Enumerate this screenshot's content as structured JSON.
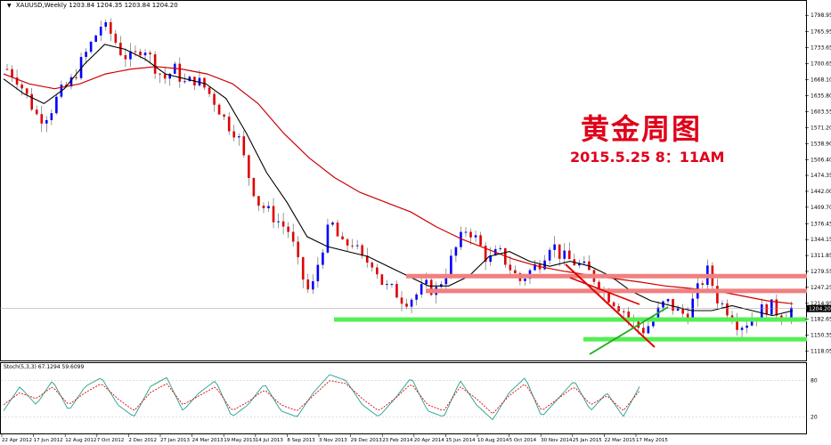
{
  "header": {
    "symbol": "XAUUSD,Weekly",
    "ohlc": "1203.84 1204.35 1203.84 1204.20"
  },
  "annotation": {
    "title": "黄金周图",
    "datetime": "2015.5.25  8：11AM"
  },
  "price_tag": "1204.20",
  "stoch": {
    "label": "Stoch(5,3,3) 67.1294 59.6099",
    "levels": [
      "80",
      "20"
    ],
    "k": 67.1294,
    "d": 59.6099
  },
  "colors": {
    "bull": "#0000ff",
    "bear": "#e00000",
    "ma_slow": "#cc0000",
    "ma_fast": "#000000",
    "support": "#55ee55",
    "resistance": "#f08080",
    "stoch_k": "#20a090",
    "stoch_d": "#e00000"
  },
  "chart_data": {
    "type": "candlestick",
    "title": "",
    "xlabel": "",
    "ylabel": "",
    "ylim": [
      1108,
      1812
    ],
    "y_ticks": [
      "1798.95",
      "1765.95",
      "1733.65",
      "1700.65",
      "1668.10",
      "1635.80",
      "1603.55",
      "1571.20",
      "1538.90",
      "1506.40",
      "1474.35",
      "1442.00",
      "1409.70",
      "1376.45",
      "1344.15",
      "1311.85",
      "1279.55",
      "1247.25",
      "1214.95",
      "1182.65",
      "1150.35",
      "1118.05"
    ],
    "x_ticks": [
      "22 Apr 2012",
      "17 Jun 2012",
      "12 Aug 2012",
      "7 Oct 2012",
      "2 Dec 2012",
      "27 Jan 2013",
      "24 Mar 2013",
      "19 May 2013",
      "14 Jul 2013",
      "8 Sep 2013",
      "3 Nov 2013",
      "29 Dec 2013",
      "23 Feb 2014",
      "20 Apr 2014",
      "15 Jun 2014",
      "10 Aug 2014",
      "5 Oct 2014",
      "30 Nov 2014",
      "25 Jan 2015",
      "22 Mar 2015",
      "17 May 2015"
    ],
    "close_path": [
      1690,
      1670,
      1630,
      1590,
      1600,
      1640,
      1660,
      1700,
      1740,
      1780,
      1760,
      1720,
      1710,
      1740,
      1700,
      1670,
      1690,
      1660,
      1670,
      1650,
      1620,
      1580,
      1560,
      1480,
      1420,
      1400,
      1380,
      1360,
      1280,
      1230,
      1320,
      1380,
      1330,
      1340,
      1300,
      1300,
      1250,
      1240,
      1220,
      1230,
      1250,
      1240,
      1280,
      1330,
      1370,
      1340,
      1300,
      1320,
      1290,
      1260,
      1280,
      1300,
      1340,
      1310,
      1300,
      1290,
      1270,
      1240,
      1220,
      1200,
      1170,
      1160,
      1190,
      1220,
      1200,
      1190,
      1240,
      1280,
      1220,
      1200,
      1170,
      1180,
      1200,
      1210,
      1190,
      1204
    ],
    "ma_slow": [
      1680,
      1660,
      1650,
      1660,
      1680,
      1690,
      1695,
      1690,
      1680,
      1660,
      1620,
      1560,
      1510,
      1470,
      1440,
      1420,
      1400,
      1370,
      1345,
      1325,
      1305,
      1290,
      1280,
      1272,
      1265,
      1258,
      1250,
      1245,
      1240,
      1230,
      1220,
      1214
    ],
    "ma_fast": [
      1670,
      1640,
      1620,
      1650,
      1700,
      1740,
      1730,
      1710,
      1680,
      1670,
      1660,
      1630,
      1560,
      1480,
      1420,
      1350,
      1330,
      1320,
      1310,
      1290,
      1270,
      1250,
      1250,
      1270,
      1310,
      1320,
      1300,
      1290,
      1300,
      1290,
      1270,
      1240,
      1220,
      1210,
      1200,
      1200,
      1210,
      1200,
      1190,
      1200
    ],
    "stoch_k": [
      30,
      70,
      40,
      80,
      30,
      70,
      85,
      40,
      20,
      70,
      85,
      30,
      60,
      80,
      20,
      40,
      75,
      30,
      20,
      60,
      90,
      80,
      40,
      20,
      50,
      85,
      30,
      20,
      80,
      40,
      15,
      60,
      85,
      20,
      50,
      80,
      30,
      60,
      20,
      70
    ],
    "stoch_d": [
      40,
      60,
      50,
      70,
      40,
      60,
      75,
      50,
      30,
      60,
      75,
      40,
      55,
      70,
      30,
      45,
      65,
      40,
      30,
      55,
      80,
      75,
      50,
      30,
      50,
      75,
      40,
      30,
      70,
      50,
      25,
      55,
      75,
      30,
      50,
      70,
      40,
      55,
      30,
      63
    ],
    "levels": {
      "resistance": [
        1270,
        1240
      ],
      "support": [
        1182,
        1142
      ],
      "current": 1204.2
    }
  }
}
